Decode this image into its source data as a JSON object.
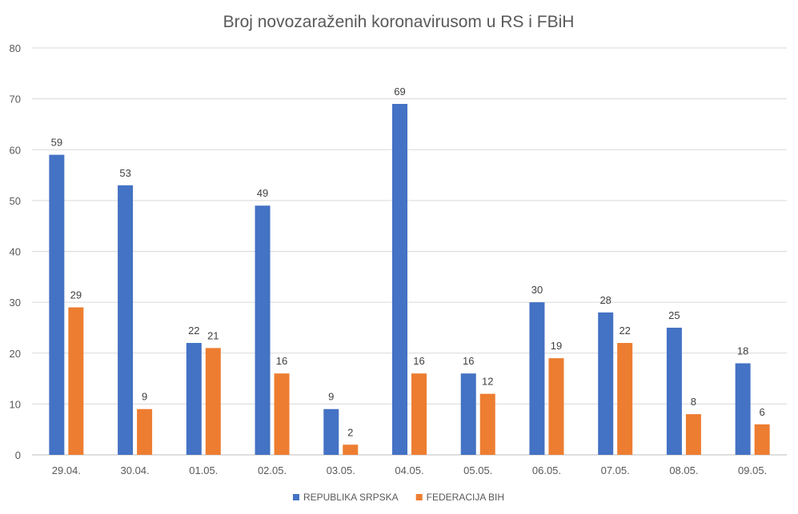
{
  "chart_data": {
    "type": "bar",
    "title": "Broj novozaraženih koronavirusom u RS i FBiH",
    "xlabel": "",
    "ylabel": "",
    "categories": [
      "29.04.",
      "30.04.",
      "01.05.",
      "02.05.",
      "03.05.",
      "04.05.",
      "05.05.",
      "06.05.",
      "07.05.",
      "08.05.",
      "09.05."
    ],
    "series": [
      {
        "name": "REPUBLIKA SRPSKA",
        "color": "#4472c4",
        "values": [
          59,
          53,
          22,
          49,
          9,
          69,
          16,
          30,
          28,
          25,
          18
        ]
      },
      {
        "name": "FEDERACIJA BIH",
        "color": "#ed7d31",
        "values": [
          29,
          9,
          21,
          16,
          2,
          16,
          12,
          19,
          22,
          8,
          6
        ]
      }
    ],
    "ylim": [
      0,
      80
    ],
    "yticks": [
      0,
      10,
      20,
      30,
      40,
      50,
      60,
      70,
      80
    ],
    "grid": true,
    "legend_position": "bottom",
    "data_labels": true
  }
}
